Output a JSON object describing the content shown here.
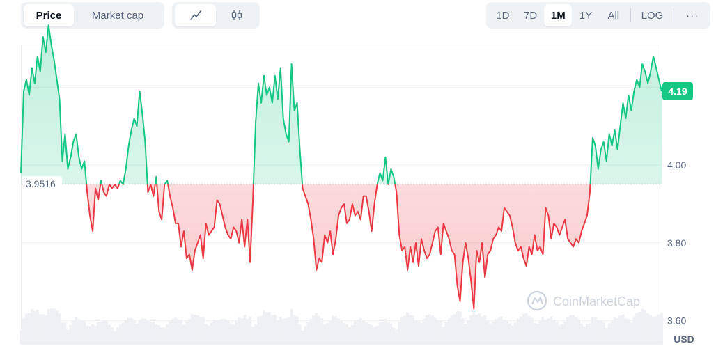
{
  "toolbar": {
    "metric_tabs": [
      {
        "label": "Price",
        "active": true
      },
      {
        "label": "Market cap",
        "active": false
      }
    ],
    "chart_style_buttons": [
      {
        "icon": "line-chart-icon",
        "active": true
      },
      {
        "icon": "candlestick-icon",
        "active": false
      }
    ],
    "range_buttons": [
      {
        "label": "1D",
        "active": false
      },
      {
        "label": "7D",
        "active": false
      },
      {
        "label": "1M",
        "active": true
      },
      {
        "label": "1Y",
        "active": false
      },
      {
        "label": "All",
        "active": false
      }
    ],
    "log_label": "LOG",
    "more_label": "···"
  },
  "chart_data": {
    "type": "area",
    "currency_label": "USD",
    "baseline": 3.9516,
    "baseline_label": "3.9516",
    "current_value": 4.19,
    "current_value_label": "4.19",
    "ylim": [
      3.54,
      4.31
    ],
    "yticks": [
      3.6,
      3.8,
      4.0
    ],
    "ytick_labels": [
      "3.60",
      "3.80",
      "4.00"
    ],
    "colors": {
      "up": "#16c784",
      "down": "#ea3943",
      "up_fill": "#d4f5e6",
      "down_fill": "#fbdadc",
      "volume": "#eef0f3"
    },
    "watermark": "CoinMarketCap",
    "x_index": [
      0,
      1,
      2,
      3,
      4,
      5,
      6,
      7,
      8,
      9,
      10,
      11,
      12,
      13,
      14,
      15,
      16,
      17,
      18,
      19,
      20,
      21,
      22,
      23,
      24,
      25,
      26,
      27,
      28,
      29,
      30,
      31,
      32,
      33,
      34,
      35,
      36,
      37,
      38,
      39,
      40,
      41,
      42,
      43,
      44,
      45,
      46,
      47,
      48,
      49,
      50,
      51,
      52,
      53,
      54,
      55,
      56,
      57,
      58,
      59,
      60,
      61,
      62,
      63,
      64,
      65,
      66,
      67,
      68,
      69,
      70,
      71,
      72,
      73,
      74,
      75,
      76,
      77,
      78,
      79,
      80,
      81,
      82,
      83,
      84,
      85,
      86,
      87,
      88,
      89,
      90,
      91,
      92,
      93,
      94,
      95,
      96,
      97,
      98,
      99,
      100,
      101,
      102,
      103,
      104,
      105,
      106,
      107,
      108,
      109,
      110,
      111,
      112,
      113,
      114,
      115,
      116,
      117,
      118,
      119,
      120,
      121,
      122,
      123,
      124,
      125,
      126,
      127,
      128,
      129,
      130,
      131,
      132,
      133,
      134,
      135,
      136,
      137,
      138,
      139,
      140,
      141,
      142,
      143,
      144,
      145,
      146,
      147,
      148,
      149,
      150,
      151,
      152,
      153,
      154,
      155,
      156,
      157,
      158,
      159,
      160,
      161,
      162,
      163,
      164,
      165,
      166,
      167,
      168,
      169,
      170,
      171,
      172,
      173,
      174,
      175,
      176,
      177,
      178,
      179,
      180,
      181,
      182,
      183,
      184,
      185,
      186,
      187,
      188,
      189,
      190,
      191,
      192,
      193,
      194,
      195,
      196,
      197,
      198,
      199,
      200,
      201,
      202,
      203,
      204,
      205,
      206,
      207,
      208,
      209,
      210,
      211,
      212,
      213,
      214,
      215,
      216,
      217,
      218,
      219,
      220,
      221,
      222,
      223,
      224,
      225,
      226,
      227,
      228,
      229
    ],
    "price": [
      3.98,
      4.19,
      4.22,
      4.18,
      4.25,
      4.21,
      4.28,
      4.24,
      4.33,
      4.29,
      4.36,
      4.31,
      4.27,
      4.22,
      4.17,
      4.01,
      4.08,
      3.99,
      4.02,
      4.06,
      4.08,
      4.02,
      3.99,
      4.01,
      3.93,
      3.87,
      3.83,
      3.94,
      3.91,
      3.96,
      3.93,
      3.92,
      3.95,
      3.94,
      3.95,
      3.94,
      3.96,
      3.95,
      3.99,
      4.05,
      4.09,
      4.12,
      4.1,
      4.19,
      4.13,
      4.06,
      3.93,
      3.95,
      3.92,
      3.97,
      3.88,
      3.86,
      3.95,
      3.96,
      3.92,
      3.89,
      3.85,
      3.85,
      3.79,
      3.83,
      3.76,
      3.77,
      3.73,
      3.78,
      3.8,
      3.82,
      3.76,
      3.85,
      3.82,
      3.83,
      3.84,
      3.91,
      3.9,
      3.87,
      3.84,
      3.82,
      3.81,
      3.84,
      3.83,
      3.8,
      3.86,
      3.79,
      3.86,
      3.75,
      3.91,
      4.11,
      4.21,
      4.16,
      4.23,
      4.18,
      4.2,
      4.16,
      4.23,
      4.17,
      4.25,
      4.12,
      4.08,
      4.06,
      4.26,
      4.14,
      4.16,
      4.04,
      3.94,
      3.92,
      3.9,
      3.86,
      3.81,
      3.73,
      3.76,
      3.75,
      3.82,
      3.8,
      3.83,
      3.77,
      3.81,
      3.87,
      3.89,
      3.9,
      3.85,
      3.86,
      3.9,
      3.87,
      3.88,
      3.86,
      3.92,
      3.92,
      3.88,
      3.83,
      3.9,
      3.95,
      3.98,
      3.96,
      4.02,
      3.95,
      3.99,
      3.97,
      3.93,
      3.82,
      3.78,
      3.79,
      3.73,
      3.79,
      3.75,
      3.8,
      3.74,
      3.81,
      3.78,
      3.76,
      3.77,
      3.8,
      3.83,
      3.84,
      3.77,
      3.85,
      3.83,
      3.81,
      3.78,
      3.77,
      3.69,
      3.65,
      3.75,
      3.8,
      3.76,
      3.7,
      3.63,
      3.78,
      3.75,
      3.8,
      3.71,
      3.77,
      3.78,
      3.81,
      3.82,
      3.84,
      3.83,
      3.89,
      3.88,
      3.87,
      3.84,
      3.8,
      3.78,
      3.79,
      3.76,
      3.74,
      3.79,
      3.77,
      3.82,
      3.78,
      3.79,
      3.77,
      3.89,
      3.87,
      3.81,
      3.85,
      3.84,
      3.82,
      3.84,
      3.86,
      3.81,
      3.8,
      3.79,
      3.81,
      3.8,
      3.83,
      3.85,
      3.87,
      3.93,
      4.07,
      4.05,
      3.99,
      4.04,
      4.06,
      4.01,
      4.08,
      4.05,
      4.09,
      4.04,
      4.1,
      4.16,
      4.12,
      4.18,
      4.14,
      4.19,
      4.22,
      4.2,
      4.26,
      4.24,
      4.21,
      4.24,
      4.28,
      4.25,
      4.22,
      4.19
    ]
  }
}
